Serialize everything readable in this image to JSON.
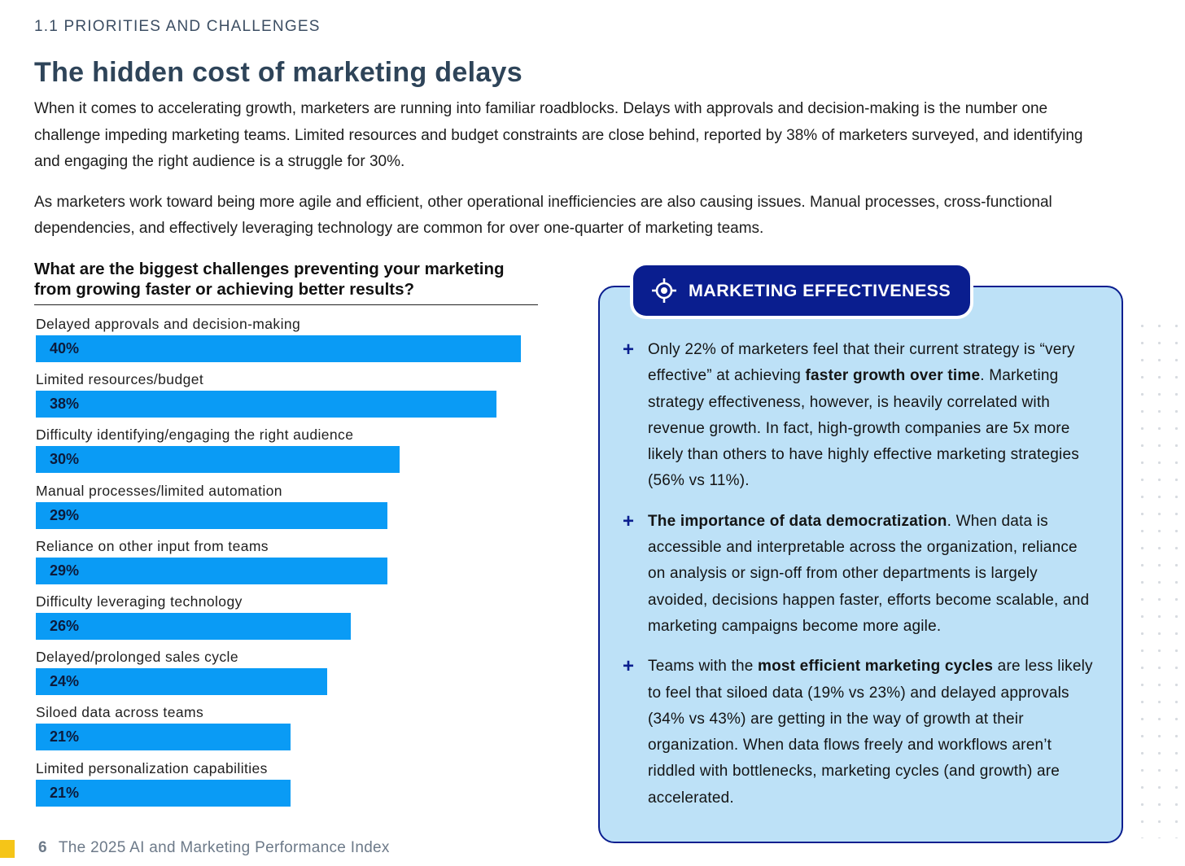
{
  "header": {
    "section_label": "1.1 PRIORITIES AND CHALLENGES",
    "title": "The hidden cost of marketing delays"
  },
  "intro": {
    "paragraph1": "When it comes to accelerating growth, marketers are running into familiar roadblocks. Delays with approvals and decision-making is the number one challenge impeding marketing teams. Limited resources and budget constraints are close behind, reported by 38% of marketers surveyed, and identifying and engaging the right audience is a struggle for 30%.",
    "paragraph2": "As marketers work toward being more agile and efficient, other operational inefficiencies are also causing issues. Manual processes, cross-functional dependencies, and effectively leveraging technology are common for over one-quarter of marketing teams."
  },
  "chart_data": {
    "type": "bar",
    "orientation": "horizontal",
    "title": "What are the biggest challenges preventing your marketing from growing faster or achieving better results?",
    "categories": [
      "Delayed approvals and decision-making",
      "Limited resources/budget",
      "Difficulty identifying/engaging the right audience",
      "Manual processes/limited automation",
      "Reliance on other input from teams",
      "Difficulty leveraging technology",
      "Delayed/prolonged sales cycle",
      "Siloed data across teams",
      "Limited personalization capabilities"
    ],
    "values": [
      40,
      38,
      30,
      29,
      29,
      26,
      24,
      21,
      21
    ],
    "labels": [
      "40%",
      "38%",
      "30%",
      "29%",
      "29%",
      "26%",
      "24%",
      "21%",
      "21%"
    ],
    "unit": "%",
    "xlim": [
      0,
      40
    ],
    "bar_color": "#0a9bf5"
  },
  "callout": {
    "title": "MARKETING EFFECTIVENESS",
    "icon": "target-icon",
    "points": [
      {
        "pre": "Only 22% of marketers feel that their current strategy is “very effective” at achieving ",
        "bold": "faster growth over time",
        "post": ". Marketing strategy effectiveness, however, is heavily correlated with revenue growth. In fact, high-growth companies are 5x more likely than others to have highly effective marketing strategies (56% vs 11%)."
      },
      {
        "pre": "",
        "bold": "The importance of data democratization",
        "post": ". When data is accessible and interpretable across the organization, reliance on analysis or sign-off from other departments is largely avoided, decisions happen faster, efforts become scalable, and marketing campaigns become more agile."
      },
      {
        "pre": "Teams with the ",
        "bold": "most efficient marketing cycles",
        "post": " are less likely to feel that siloed data (19% vs 23%) and delayed approvals (34% vs 43%) are getting in the way of growth at their organization. When data flows freely and workflows aren’t riddled with bottlenecks, marketing cycles (and growth) are accelerated."
      }
    ]
  },
  "footer": {
    "page_number": "6",
    "publication": "The 2025 AI and Marketing Performance Index"
  },
  "colors": {
    "accent_navy": "#0a1e8f",
    "callout_bg": "#bde1f7",
    "footer_mark": "#f5c518"
  }
}
